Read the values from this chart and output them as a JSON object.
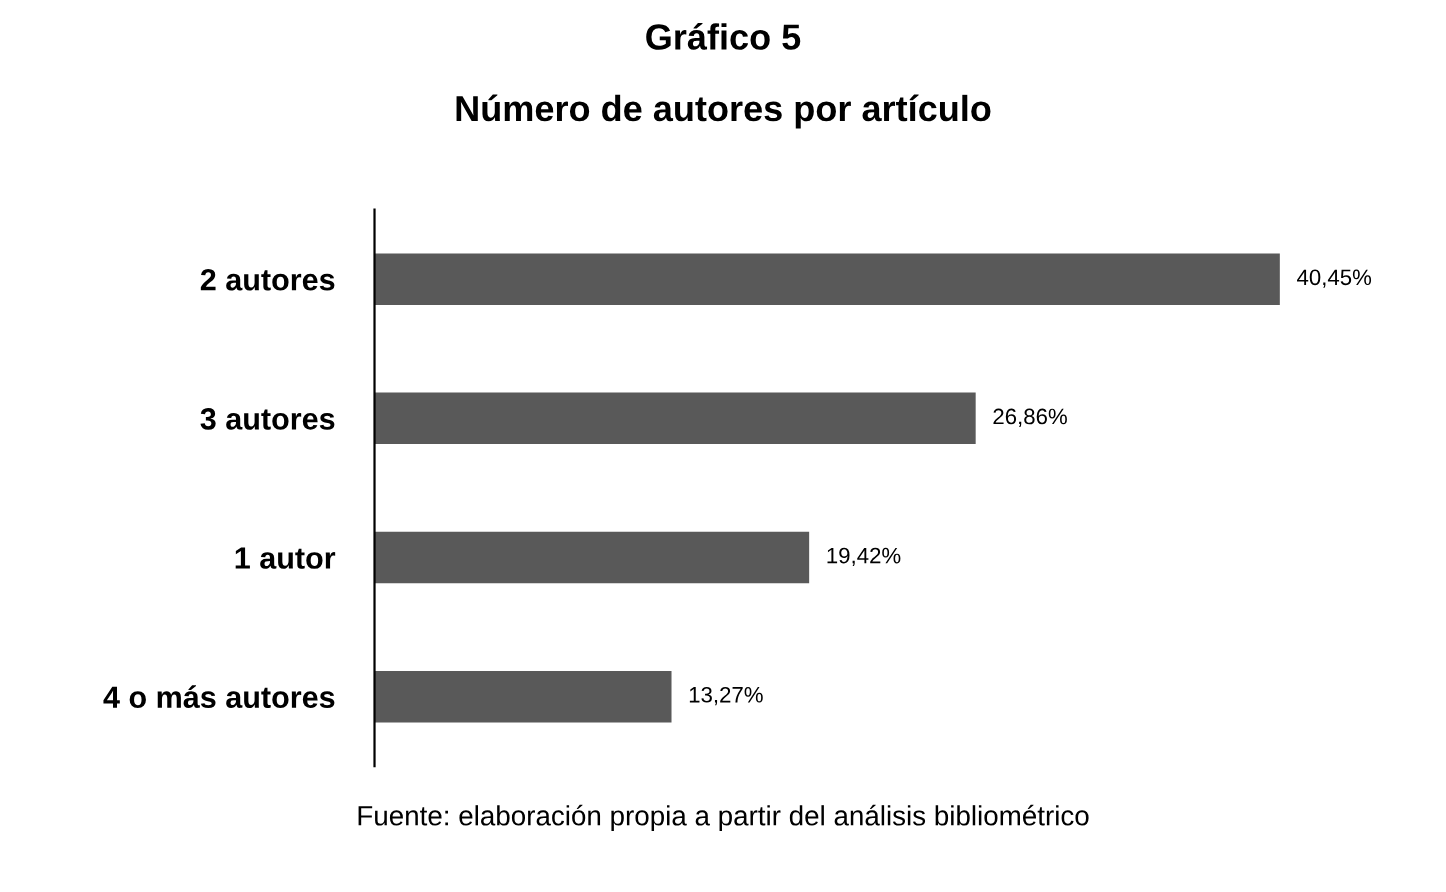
{
  "chart_data": {
    "type": "bar",
    "orientation": "horizontal",
    "title": "Gráfico 5",
    "subtitle": "Número de autores por artículo",
    "categories": [
      "2 autores",
      "3 autores",
      "1 autor",
      "4 o más autores"
    ],
    "values": [
      40.45,
      26.86,
      19.42,
      13.27
    ],
    "value_labels": [
      "40,45%",
      "26,86%",
      "19,42%",
      "13,27%"
    ],
    "color": "#595959",
    "grid": false,
    "legend": false,
    "annotations": [
      "Fuente: elaboración propia a partir del análisis bibliométrico"
    ]
  }
}
